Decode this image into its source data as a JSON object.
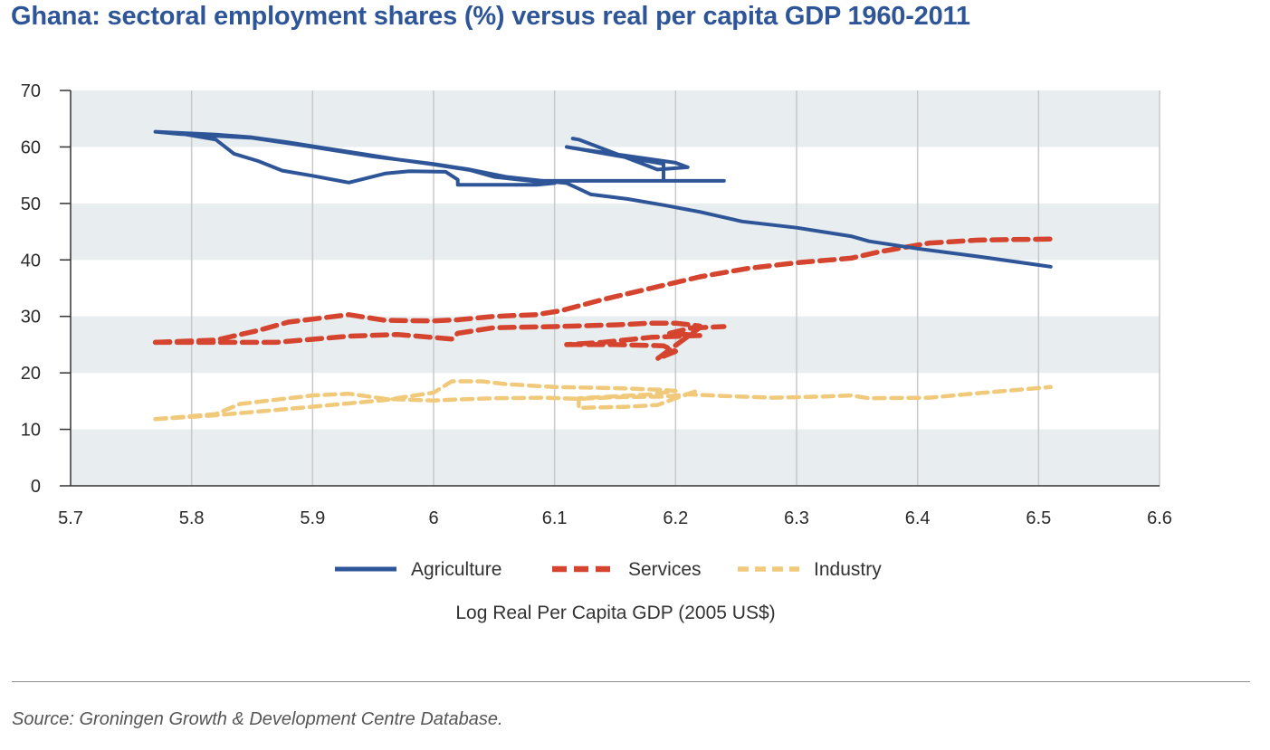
{
  "title": "Ghana: sectoral employment shares (%) versus real per capita GDP 1960-2011",
  "source": "Source: Groningen Growth & Development Centre Database.",
  "colors": {
    "agriculture": "#2e5597",
    "services": "#d4442e",
    "industry": "#f1c97a",
    "band": "#e8edf0",
    "grid": "#c8c8c8",
    "axis": "#333333"
  },
  "chart_data": {
    "type": "line",
    "title": "Ghana: sectoral employment shares (%) versus real per capita GDP 1960-2011",
    "xlabel": "Log Real Per Capita GDP (2005 US$)",
    "ylabel": "",
    "xlim": [
      5.7,
      6.6
    ],
    "ylim": [
      0,
      70
    ],
    "xticks": [
      "5.7",
      "5.8",
      "5.9",
      "6",
      "6.1",
      "6.2",
      "6.3",
      "6.4",
      "6.5",
      "6.6"
    ],
    "yticks": [
      "0",
      "10",
      "20",
      "30",
      "40",
      "50",
      "60",
      "70"
    ],
    "grid": "vertical gridlines, alternating horizontal bands",
    "legend_position": "bottom-center",
    "series": [
      {
        "name": "Agriculture",
        "style": "solid",
        "x": [
          5.77,
          5.82,
          5.85,
          5.88,
          5.91,
          5.94,
          5.97,
          6.0,
          6.03,
          6.05,
          6.08,
          6.1,
          6.085,
          6.02,
          6.02,
          6.01,
          5.98,
          5.96,
          5.93,
          5.9,
          5.875,
          5.855,
          5.835,
          5.82,
          5.79,
          5.77,
          5.79,
          5.85,
          5.9,
          5.95,
          6.0,
          6.03,
          6.06,
          6.09,
          6.11,
          6.13,
          6.16,
          6.19,
          6.22,
          6.255,
          6.3,
          6.345,
          6.36,
          6.4,
          6.45,
          6.51
        ],
        "y": [
          62.7,
          62.2,
          61.7,
          60.8,
          59.8,
          58.8,
          57.8,
          56.9,
          55.9,
          54.7,
          54.0,
          53.6,
          53.3,
          53.3,
          54.2,
          55.6,
          55.7,
          55.3,
          53.7,
          54.9,
          55.8,
          57.5,
          58.8,
          61.3,
          62.4,
          62.7,
          62.3,
          61.6,
          60.0,
          58.3,
          57.0,
          56.0,
          54.7,
          54.0,
          53.6,
          51.6,
          50.8,
          49.7,
          48.5,
          46.8,
          45.7,
          44.2,
          43.3,
          42.0,
          40.6,
          38.8
        ],
        "loop_x": [
          6.09,
          6.24,
          6.2,
          6.19,
          6.19,
          6.11,
          6.125,
          6.2,
          6.21,
          6.185,
          6.12,
          6.115
        ],
        "loop_y": [
          54.0,
          54.0,
          54.0,
          54.0,
          57.0,
          60.0,
          59.5,
          57.2,
          56.4,
          56.0,
          61.3,
          61.5
        ]
      },
      {
        "name": "Services",
        "style": "dashed",
        "x": [
          5.77,
          5.82,
          5.855,
          5.88,
          5.93,
          5.96,
          6.0,
          6.02,
          6.05,
          6.085,
          6.105,
          6.14,
          6.18,
          6.22,
          6.26,
          6.3,
          6.345,
          6.37,
          6.41,
          6.45,
          6.51
        ],
        "y": [
          25.4,
          25.8,
          27.5,
          29.0,
          30.3,
          29.3,
          29.2,
          29.4,
          30.0,
          30.3,
          31.0,
          33.0,
          35.0,
          37.0,
          38.5,
          39.5,
          40.3,
          41.5,
          43.0,
          43.5,
          43.7
        ],
        "loop_x": [
          5.77,
          5.81,
          5.87,
          5.93,
          5.97,
          6.015,
          6.02,
          6.05,
          6.1,
          6.15,
          6.18,
          6.2,
          6.22,
          6.195,
          6.22,
          6.18,
          6.14,
          6.11
        ],
        "loop_y": [
          25.4,
          25.4,
          25.4,
          26.5,
          26.8,
          26.0,
          27.0,
          28.0,
          28.2,
          28.5,
          28.8,
          28.8,
          28.3,
          27.0,
          26.6,
          26.3,
          25.4,
          25.0
        ],
        "tail_x": [
          6.11,
          6.15,
          6.19,
          6.2,
          6.185,
          6.22,
          6.24
        ],
        "tail_y": [
          25.0,
          25.0,
          24.8,
          23.8,
          22.5,
          28.0,
          28.2
        ]
      },
      {
        "name": "Industry",
        "style": "dashed",
        "x": [
          5.77,
          5.82,
          5.84,
          5.9,
          5.93,
          5.96,
          6.0,
          6.02,
          6.05,
          6.09,
          6.12,
          6.15,
          6.19,
          6.21,
          6.24,
          6.28,
          6.32,
          6.345,
          6.36,
          6.41,
          6.45,
          6.51
        ],
        "y": [
          11.8,
          12.7,
          14.5,
          16.0,
          16.3,
          15.4,
          15.1,
          15.3,
          15.5,
          15.6,
          15.4,
          15.7,
          15.8,
          16.2,
          15.9,
          15.6,
          15.8,
          16.0,
          15.5,
          15.6,
          16.4,
          17.5
        ],
        "loop_x": [
          5.77,
          5.82,
          5.9,
          5.96,
          6.0,
          6.015,
          6.04,
          6.06,
          6.1,
          6.15,
          6.19,
          6.2,
          6.18,
          6.12,
          6.12,
          6.16,
          6.185,
          6.2,
          6.22
        ],
        "loop_y": [
          11.8,
          12.5,
          14.0,
          15.2,
          16.5,
          18.5,
          18.5,
          18.0,
          17.5,
          17.3,
          17.0,
          16.8,
          16.2,
          15.5,
          13.8,
          14.0,
          14.3,
          15.5,
          17.0
        ]
      }
    ]
  }
}
